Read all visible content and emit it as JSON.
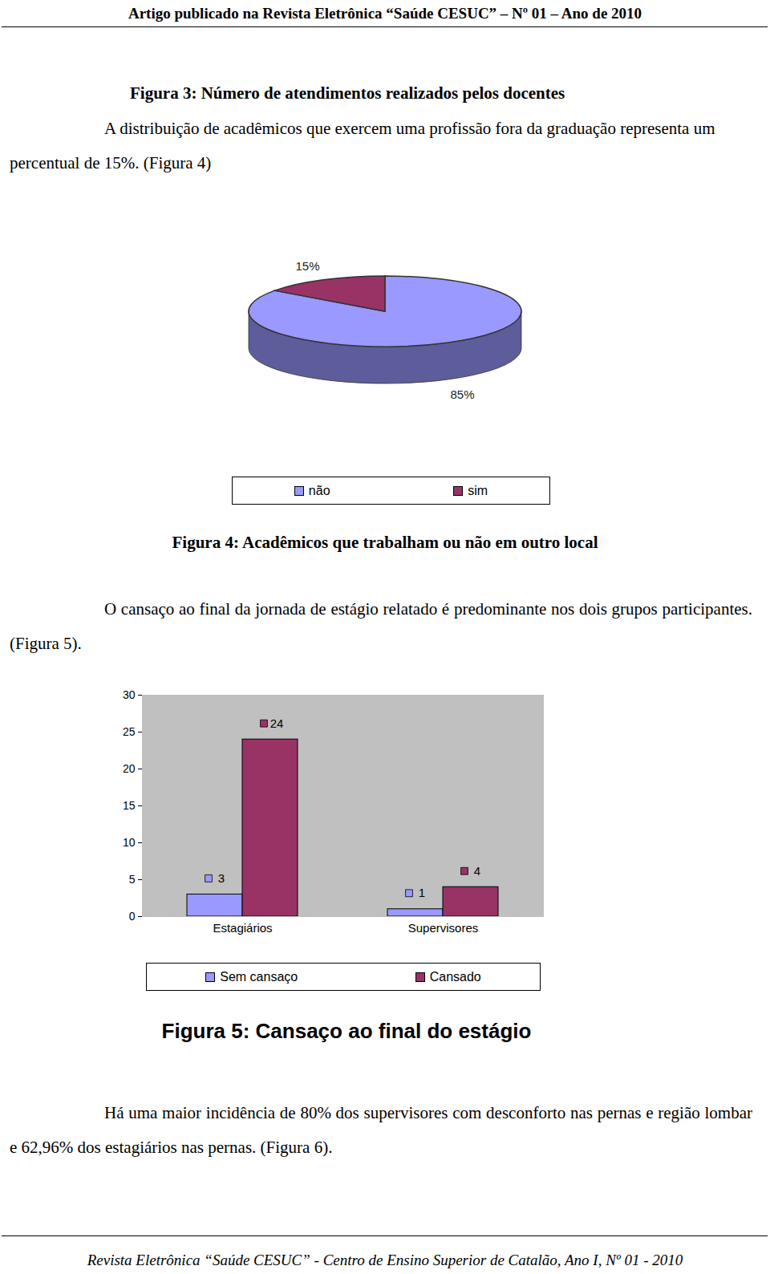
{
  "document": {
    "header": "Artigo publicado na Revista Eletrônica “Saúde CESUC” – Nº 01 – Ano de 2010",
    "figure_caption": "Figura 3: Número de atendimentos realizados pelos docentes",
    "paragraphs": [
      "A distribuição de acadêmicos que exercem uma profissão fora da graduação representa um percentual de 15%. (Figura 4)",
      "O cansaço ao final da jornada de estágio relatado é predominante nos dois grupos participantes. (Figura 5).",
      "Há uma maior incidência de 80% dos supervisores com desconforto nas pernas e região lombar e 62,96% dos estagiários nas pernas. (Figura 6)."
    ],
    "footer": "Revista Eletrônica “Saúde CESUC” - Centro de Ensino Superior de Catalão, Ano I, Nº 01 - 2010"
  },
  "chart_data": [
    {
      "type": "pie",
      "title": "Figura 4: Acadêmicos que trabalham ou não em outro local",
      "categories": [
        "não",
        "sim"
      ],
      "values": [
        85,
        15
      ],
      "value_labels": [
        "85%",
        "15%"
      ],
      "colors": [
        "#9999ff",
        "#993366"
      ],
      "data_labels": true,
      "legend": "bottom"
    },
    {
      "type": "bar",
      "title": "Figura 5: Cansaço ao final do estágio",
      "categories": [
        "Estagiários",
        "Supervisores"
      ],
      "series": [
        {
          "name": "Sem cansaço",
          "color": "#9999ff",
          "values": [
            3,
            1
          ]
        },
        {
          "name": "Cansado",
          "color": "#993366",
          "values": [
            24,
            4
          ]
        }
      ],
      "ylim": [
        0,
        30
      ],
      "yticks": [
        0,
        5,
        10,
        15,
        20,
        25,
        30
      ],
      "grid": false,
      "data_labels": true,
      "legend": "bottom"
    }
  ]
}
